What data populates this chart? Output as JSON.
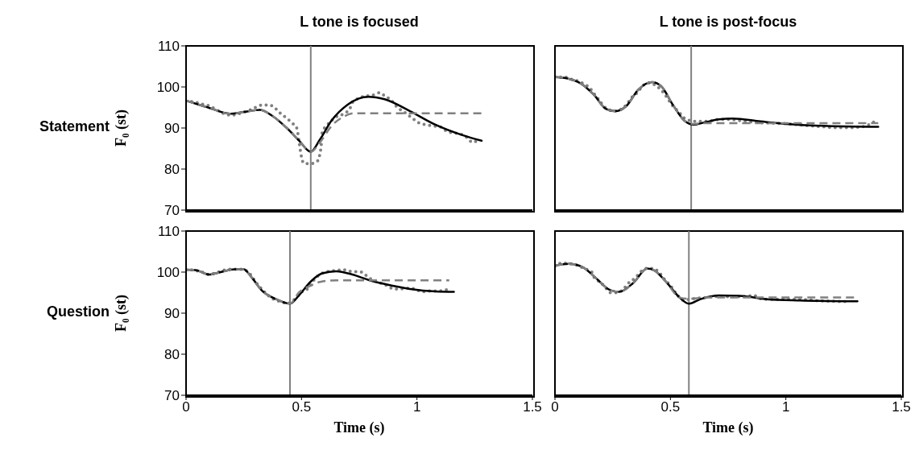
{
  "chart_data": [
    {
      "type": "line",
      "title": "L tone is focused",
      "ylabel": "F₀ (st)",
      "annotations": [
        "Statement"
      ],
      "xlim": [
        0,
        1.5
      ],
      "xticks": [
        0,
        0.5,
        1,
        1.5
      ],
      "ylim": [
        70,
        110
      ],
      "yticks": [
        70,
        80,
        90,
        100,
        110
      ],
      "tick_labels": "y",
      "ref_lines": [
        {
          "axis": "x",
          "value": 0.54,
          "color": "#808080"
        }
      ],
      "series": [
        {
          "color": "#808080",
          "line_style": "dotted",
          "x": [
            0,
            0.04,
            0.07,
            0.1,
            0.12,
            0.15,
            0.18,
            0.21,
            0.24,
            0.27,
            0.3,
            0.33,
            0.36,
            0.39,
            0.41,
            0.44,
            0.46,
            0.48,
            0.49,
            0.5,
            0.51,
            0.54,
            0.57,
            0.58,
            0.585,
            0.59,
            0.61,
            0.63,
            0.65,
            0.68,
            0.71,
            0.72,
            0.75,
            0.78,
            0.81,
            0.84,
            0.86,
            0.89,
            0.91,
            0.95,
            0.98,
            1.01,
            1.04,
            1.07,
            1.1,
            1.13,
            1.16,
            1.19,
            1.22,
            1.24,
            1.27
          ],
          "values": [
            96.5,
            96.3,
            95.8,
            95.4,
            94.8,
            93.9,
            93.2,
            93.2,
            93.7,
            94.2,
            95,
            95.6,
            95.6,
            94.6,
            93.5,
            92.2,
            91.2,
            89.9,
            86.4,
            82.9,
            81.4,
            81.3,
            82,
            83.8,
            85.6,
            89,
            90.6,
            91.8,
            92.7,
            93.4,
            94.8,
            96.2,
            97.3,
            97.8,
            98,
            98.6,
            97.8,
            96.7,
            95.3,
            93.7,
            92.4,
            91.2,
            90.8,
            90.5,
            90.3,
            89.2,
            88.8,
            88.5,
            87.5,
            86.5,
            87.3
          ]
        },
        {
          "color": "#000000",
          "line_style": "solid",
          "x": [
            0,
            0.095,
            0.19,
            0.25,
            0.32,
            0.37,
            0.44,
            0.49,
            0.54,
            0.58,
            0.63,
            0.7,
            0.79,
            0.86,
            0.97,
            1.08,
            1.2,
            1.28
          ],
          "values": [
            96.7,
            95,
            93.5,
            93.9,
            94.4,
            93.1,
            89.8,
            86.9,
            84.2,
            87.2,
            91.8,
            95.7,
            97.6,
            97,
            94.1,
            90.8,
            88.2,
            86.9
          ]
        },
        {
          "color": "#808080",
          "line_style": "dashed",
          "x": [
            0,
            0.095,
            0.19,
            0.25,
            0.32,
            0.37,
            0.44,
            0.49,
            0.54,
            0.58,
            0.63,
            0.68,
            0.73,
            1.28
          ],
          "values": [
            96.7,
            95,
            93.5,
            93.9,
            94.4,
            93.1,
            89.8,
            86.9,
            84.2,
            86.5,
            90.5,
            92.7,
            93.6,
            93.6
          ]
        }
      ]
    },
    {
      "type": "line",
      "title": "L tone is post-focus",
      "xlim": [
        0,
        1.5
      ],
      "xticks": [
        0,
        0.5,
        1,
        1.5
      ],
      "ylim": [
        70,
        110
      ],
      "yticks": [
        70,
        80,
        90,
        100,
        110
      ],
      "tick_labels": false,
      "ref_lines": [
        {
          "axis": "x",
          "value": 0.59,
          "color": "#808080"
        }
      ],
      "series": [
        {
          "color": "#808080",
          "line_style": "dotted",
          "x": [
            0,
            0.04,
            0.07,
            0.1,
            0.13,
            0.15,
            0.17,
            0.19,
            0.21,
            0.24,
            0.26,
            0.29,
            0.31,
            0.33,
            0.36,
            0.38,
            0.41,
            0.44,
            0.47,
            0.49,
            0.51,
            0.54,
            0.56,
            0.58,
            0.61,
            0.64,
            0.68,
            0.71,
            0.75,
            0.79,
            0.83,
            0.89,
            0.94,
            0.99,
            1.05,
            1.11,
            1.16,
            1.21,
            1.27,
            1.33,
            1.36,
            1.39
          ],
          "values": [
            102.4,
            102.4,
            101.9,
            101.4,
            100.6,
            99.8,
            98.3,
            96.9,
            95.4,
            94.3,
            94.1,
            94.7,
            95.7,
            97.3,
            98.8,
            100.3,
            101,
            100.2,
            98.6,
            97,
            95.4,
            93.7,
            92.4,
            91.9,
            91.6,
            91.6,
            91.8,
            92.1,
            92.1,
            91.9,
            91.6,
            91.3,
            91.2,
            91.1,
            90.8,
            90.5,
            90.3,
            90.1,
            90.1,
            90.3,
            90.8,
            91.8
          ]
        },
        {
          "color": "#000000",
          "line_style": "solid",
          "x": [
            0,
            0.05,
            0.11,
            0.17,
            0.22,
            0.26,
            0.31,
            0.36,
            0.42,
            0.46,
            0.51,
            0.56,
            0.6,
            0.65,
            0.71,
            0.77,
            0.89,
            1,
            1.18,
            1.4
          ],
          "values": [
            102.4,
            102.1,
            100.9,
            98,
            94.7,
            94.1,
            95.4,
            99.3,
            101.2,
            100.2,
            95.7,
            91.8,
            90.8,
            91.4,
            92.1,
            92.3,
            91.6,
            91,
            90.5,
            90.3
          ]
        },
        {
          "color": "#808080",
          "line_style": "dashed",
          "x": [
            0,
            0.05,
            0.11,
            0.17,
            0.22,
            0.26,
            0.31,
            0.36,
            0.42,
            0.46,
            0.51,
            0.56,
            0.59,
            0.65,
            1.4
          ],
          "values": [
            102.4,
            102.1,
            100.9,
            98,
            94.7,
            94.1,
            95.4,
            99.3,
            101.2,
            100.2,
            95.7,
            91.8,
            91,
            91.2,
            91.2
          ]
        }
      ]
    },
    {
      "type": "line",
      "xlabel": "Time (s)",
      "ylabel": "F₀ (st)",
      "annotations": [
        "Question"
      ],
      "xlim": [
        0,
        1.5
      ],
      "xticks": [
        0,
        0.5,
        1,
        1.5
      ],
      "ylim": [
        70,
        110
      ],
      "yticks": [
        70,
        80,
        90,
        100,
        110
      ],
      "ref_lines": [
        {
          "axis": "x",
          "value": 0.45,
          "color": "#808080"
        }
      ],
      "series": [
        {
          "color": "#808080",
          "line_style": "dotted",
          "x": [
            0,
            0.04,
            0.07,
            0.1,
            0.12,
            0.15,
            0.18,
            0.21,
            0.24,
            0.27,
            0.3,
            0.33,
            0.36,
            0.39,
            0.41,
            0.44,
            0.47,
            0.5,
            0.53,
            0.56,
            0.59,
            0.62,
            0.65,
            0.68,
            0.71,
            0.76,
            0.79,
            0.84,
            0.87,
            0.9,
            0.93,
            0.97,
            1,
            1.02,
            1.06,
            1.09,
            1.12,
            1.15
          ],
          "values": [
            100.6,
            100.4,
            100,
            99.4,
            99.7,
            100.2,
            100.7,
            100.7,
            100.7,
            100,
            97.7,
            95.7,
            94.1,
            93.1,
            92.8,
            92.4,
            93.4,
            95.1,
            96.1,
            98.5,
            99.7,
            100.2,
            100.4,
            100.6,
            100.2,
            100,
            98.7,
            97.4,
            96.7,
            95.9,
            95.9,
            96.1,
            95.7,
            95.2,
            95.4,
            95.4,
            95.6,
            95.9
          ]
        },
        {
          "color": "#000000",
          "line_style": "solid",
          "x": [
            0,
            0.04,
            0.1,
            0.15,
            0.21,
            0.25,
            0.28,
            0.33,
            0.39,
            0.45,
            0.49,
            0.54,
            0.59,
            0.65,
            0.72,
            0.79,
            0.86,
            0.97,
            1.08,
            1.16
          ],
          "values": [
            100.6,
            100.5,
            99.4,
            100,
            100.7,
            100.7,
            99,
            95.4,
            93.4,
            92.3,
            94.4,
            97.7,
            99.7,
            100.2,
            99.4,
            98.1,
            97.1,
            95.9,
            95.3,
            95.2
          ]
        },
        {
          "color": "#808080",
          "line_style": "dashed",
          "x": [
            0,
            0.04,
            0.1,
            0.15,
            0.21,
            0.25,
            0.28,
            0.33,
            0.39,
            0.45,
            0.49,
            0.54,
            0.58,
            0.65,
            1.14
          ],
          "values": [
            100.6,
            100.5,
            99.4,
            100,
            100.7,
            100.7,
            99,
            95.4,
            93.4,
            92.3,
            95.1,
            96.7,
            97.6,
            98,
            98
          ]
        }
      ]
    },
    {
      "type": "line",
      "xlabel": "Time (s)",
      "xlim": [
        0,
        1.5
      ],
      "xticks": [
        0,
        0.5,
        1,
        1.5
      ],
      "ylim": [
        70,
        110
      ],
      "yticks": [
        70,
        80,
        90,
        100,
        110
      ],
      "tick_labels": "x",
      "ref_lines": [
        {
          "axis": "x",
          "value": 0.58,
          "color": "#808080"
        }
      ],
      "series": [
        {
          "color": "#808080",
          "line_style": "dotted",
          "x": [
            0,
            0.03,
            0.07,
            0.1,
            0.13,
            0.16,
            0.17,
            0.2,
            0.22,
            0.24,
            0.27,
            0.3,
            0.32,
            0.35,
            0.37,
            0.4,
            0.42,
            0.45,
            0.47,
            0.5,
            0.53,
            0.56,
            0.58,
            0.61,
            0.65,
            0.68,
            0.71,
            0.75,
            0.79,
            0.83,
            0.86,
            0.9,
            0.94,
            0.99,
            1.04,
            1.1,
            1.15,
            1.21,
            1.27
          ],
          "values": [
            101.4,
            102.2,
            102,
            101.6,
            100.8,
            100,
            98.7,
            97.4,
            96.1,
            95,
            95,
            96.1,
            97.4,
            98.7,
            100,
            100.9,
            100.9,
            100,
            98.5,
            96.7,
            94.4,
            93.1,
            93.4,
            93.6,
            93.8,
            94,
            94.1,
            94,
            94,
            94.1,
            94.3,
            93.4,
            93.4,
            93.4,
            93.4,
            93.2,
            93,
            92.9,
            92.8
          ]
        },
        {
          "color": "#000000",
          "line_style": "solid",
          "x": [
            0,
            0.06,
            0.12,
            0.18,
            0.24,
            0.28,
            0.34,
            0.4,
            0.43,
            0.48,
            0.54,
            0.58,
            0.63,
            0.71,
            0.8,
            0.92,
            1.06,
            1.31
          ],
          "values": [
            101.6,
            102,
            101.2,
            98.4,
            95.6,
            95.2,
            97.4,
            100.9,
            100.4,
            97.7,
            93.8,
            92.3,
            93.4,
            94.3,
            94.2,
            93.4,
            93.1,
            92.9
          ]
        },
        {
          "color": "#808080",
          "line_style": "dashed",
          "x": [
            0,
            0.06,
            0.12,
            0.18,
            0.24,
            0.28,
            0.34,
            0.4,
            0.43,
            0.48,
            0.54,
            0.58,
            0.65,
            1.3
          ],
          "values": [
            101.6,
            102,
            101.2,
            98.4,
            95.6,
            95.2,
            97.4,
            100.9,
            100.4,
            97.7,
            93.8,
            93.5,
            93.8,
            93.8
          ]
        }
      ]
    }
  ]
}
